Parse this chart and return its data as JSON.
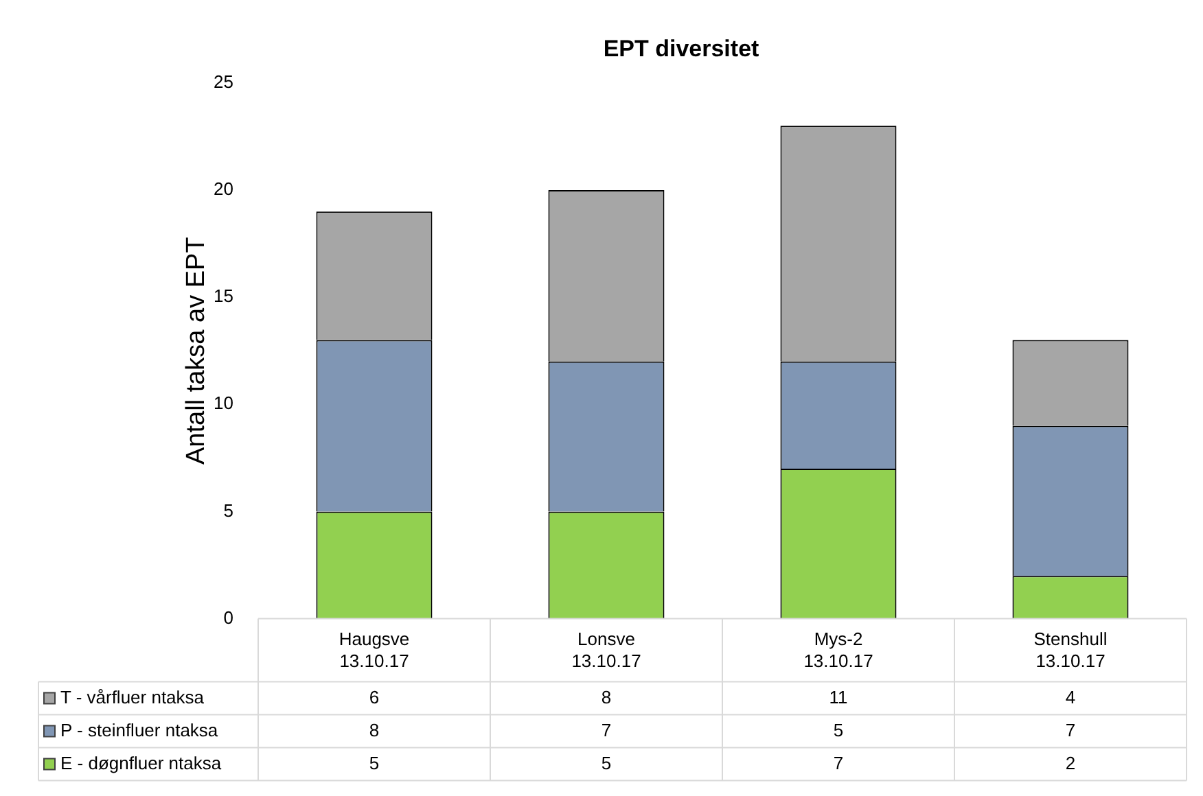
{
  "chart_data": {
    "type": "bar",
    "title": "EPT diversitet",
    "ylabel": "Antall taksa av EPT",
    "categories": [
      "Haugsve\n13.10.17",
      "Lonsve\n13.10.17",
      "Mys-2\n13.10.17",
      "Stenshull\n13.10.17"
    ],
    "series": [
      {
        "name": "E - døgnfluer ntaksa",
        "color": "#92d050",
        "values": [
          5,
          5,
          7,
          2
        ]
      },
      {
        "name": "P - steinfluer ntaksa",
        "color": "#8096b4",
        "values": [
          8,
          7,
          5,
          7
        ]
      },
      {
        "name": "T - vårfluer ntaksa",
        "color": "#a6a6a6",
        "values": [
          6,
          8,
          11,
          4
        ]
      }
    ],
    "stacked": true,
    "ylim": [
      0,
      25
    ],
    "yticks": [
      0,
      5,
      10,
      15,
      20,
      25
    ],
    "grid": false,
    "legend": "bottom left",
    "data_labels": true
  }
}
